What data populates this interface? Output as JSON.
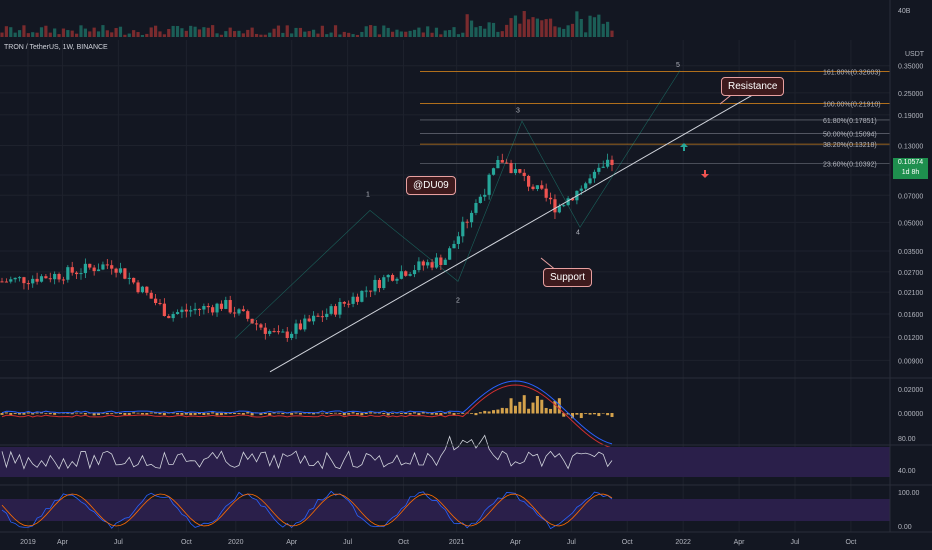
{
  "symbol_title": "TRON / TetherUS, 1W, BINANCE",
  "volume_label": "40B",
  "currency_label": "USDT",
  "price_axis": [
    "0.35000",
    "0.25000",
    "0.19000",
    "0.13000",
    "0.09000",
    "0.07000",
    "0.05000",
    "0.03500",
    "0.02700",
    "0.02100",
    "0.01600",
    "0.01200",
    "0.00900"
  ],
  "last_price": "0.10574",
  "countdown": "1d 8h",
  "macd_axis": [
    "0.02000",
    "0.00000"
  ],
  "rsi_axis": [
    "80.00",
    "40.00"
  ],
  "stoch_axis": [
    "100.00",
    "0.00"
  ],
  "time_axis": [
    "2019",
    "Apr",
    "Jul",
    "Oct",
    "2020",
    "Apr",
    "Jul",
    "Oct",
    "2021",
    "Apr",
    "Jul",
    "Oct",
    "2022",
    "Apr",
    "Jul",
    "Oct"
  ],
  "fib_levels": [
    {
      "label": "161.80%(0.32603)",
      "color": "#c77c1c"
    },
    {
      "label": "100.00%(0.21910)",
      "color": "#c77c1c"
    },
    {
      "label": "61.80%(0.17851)",
      "color": "#5d606b"
    },
    {
      "label": "50.00%(0.15094)",
      "color": "#5d606b"
    },
    {
      "label": "38.20%(0.13218)",
      "color": "#c77c1c"
    },
    {
      "label": "23.60%(0.10392)",
      "color": "#5d606b"
    }
  ],
  "annotations": {
    "author": "@DU09",
    "support": "Support",
    "resistance": "Resistance",
    "waves": [
      "1",
      "2",
      "3",
      "4",
      "5"
    ]
  },
  "colors": {
    "up": "#26a69a",
    "down": "#ef5350",
    "support_line": "#d1d4dc",
    "rsi_band": "#2a1f4a",
    "wave": "#22ab94"
  },
  "chart_data": {
    "type": "candlestick",
    "title": "TRON / TetherUS, 1W, BINANCE",
    "y_scale": "log",
    "ylim": [
      0.0075,
      0.4
    ],
    "x": [
      "2019-01",
      "2019-04",
      "2019-07",
      "2019-10",
      "2020-01",
      "2020-04",
      "2020-07",
      "2020-10",
      "2021-01",
      "2021-04",
      "2021-07",
      "2021-09"
    ],
    "series": [
      {
        "name": "close",
        "values": [
          0.024,
          0.026,
          0.03,
          0.016,
          0.018,
          0.012,
          0.017,
          0.026,
          0.032,
          0.11,
          0.06,
          0.1057
        ]
      }
    ],
    "fibonacci": [
      0.32603,
      0.2191,
      0.17851,
      0.15094,
      0.13218,
      0.10392
    ],
    "rsi_range": [
      40,
      80
    ],
    "stochastic_range": [
      0,
      100
    ]
  }
}
